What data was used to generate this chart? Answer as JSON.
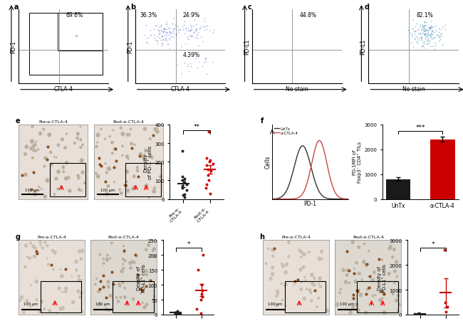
{
  "panel_labels": [
    "a",
    "b",
    "c",
    "d",
    "e",
    "f",
    "g",
    "h"
  ],
  "flow_a": {
    "percent_top_right": "69.6%",
    "xlabel": "CTLA-4",
    "ylabel": "PD-1"
  },
  "flow_b": {
    "percent_top_left": "36.3%",
    "percent_top_right": "24.9%",
    "percent_bottom_right": "4.39%",
    "xlabel": "CTLA-4",
    "ylabel": "PD-1"
  },
  "flow_c": {
    "percent_top_right": "44.8%",
    "xlabel": "No stain",
    "ylabel": "PD-L1"
  },
  "flow_d": {
    "percent_top_right": "82.1%",
    "xlabel": "No stain",
    "ylabel": "PD-L1"
  },
  "scatter_e": {
    "group1_label": "Pre-α-\nCTLA-4",
    "group2_label": "Post-α-\nCTLA-4",
    "ylabel": "Density\nof PD-1⁺ cells",
    "ylim": [
      0,
      400
    ],
    "yticks": [
      0,
      100,
      200,
      300,
      400
    ],
    "group1_points": [
      10,
      20,
      25,
      50,
      60,
      70,
      80,
      90,
      100,
      110,
      120,
      260
    ],
    "group2_points": [
      30,
      60,
      80,
      100,
      130,
      150,
      160,
      180,
      190,
      200,
      210,
      220,
      360
    ],
    "significance": "**"
  },
  "bar_f": {
    "categories": [
      "UnTx",
      "α-CTLA-4"
    ],
    "values": [
      800,
      2400
    ],
    "errors": [
      80,
      100
    ],
    "ylabel": "PD-1MFI of\nFoxp3⁻ CD4⁺ TILs",
    "ylim": [
      0,
      3000
    ],
    "yticks": [
      0,
      1000,
      2000,
      3000
    ],
    "bar_colors": [
      "#1a1a1a",
      "#cc0000"
    ],
    "significance": "***"
  },
  "scatter_g": {
    "group1_label": "Pre-α-\nCTLA-4",
    "group2_label": "Post-α-\nCTLA-4",
    "ylabel": "Density of\nPD-L1⁺ cells",
    "ylim": [
      0,
      250
    ],
    "yticks": [
      0,
      50,
      100,
      150,
      200,
      250
    ],
    "group1_points": [
      2,
      3,
      4,
      5,
      7,
      8,
      10,
      12
    ],
    "group2_points": [
      5,
      20,
      50,
      60,
      70,
      80,
      100,
      150,
      200
    ],
    "significance": "*"
  },
  "scatter_h": {
    "group1_label": "Pre-α-\nCTLA-4",
    "group2_label": "Post-α-\nCTLA-4",
    "ylabel": "Density of\nPD-L1⁺ cells",
    "ylim": [
      0,
      3000
    ],
    "yticks": [
      0,
      1000,
      2000,
      3000
    ],
    "group1_points": [
      10,
      20,
      30,
      40,
      50
    ],
    "group2_points": [
      100,
      300,
      500,
      2600
    ],
    "significance": "*"
  },
  "background_color": "#ffffff",
  "scatter_dot_color_g1": "#000000",
  "scatter_dot_color_g2": "#cc0000",
  "scatter_mean_color": "#cc0000",
  "hist_untx_color": "#333333",
  "hist_ctla4_color": "#cc4444",
  "tissue_bg_color": "#e8e0d8",
  "tissue_bg_color2": "#ddd8d0"
}
